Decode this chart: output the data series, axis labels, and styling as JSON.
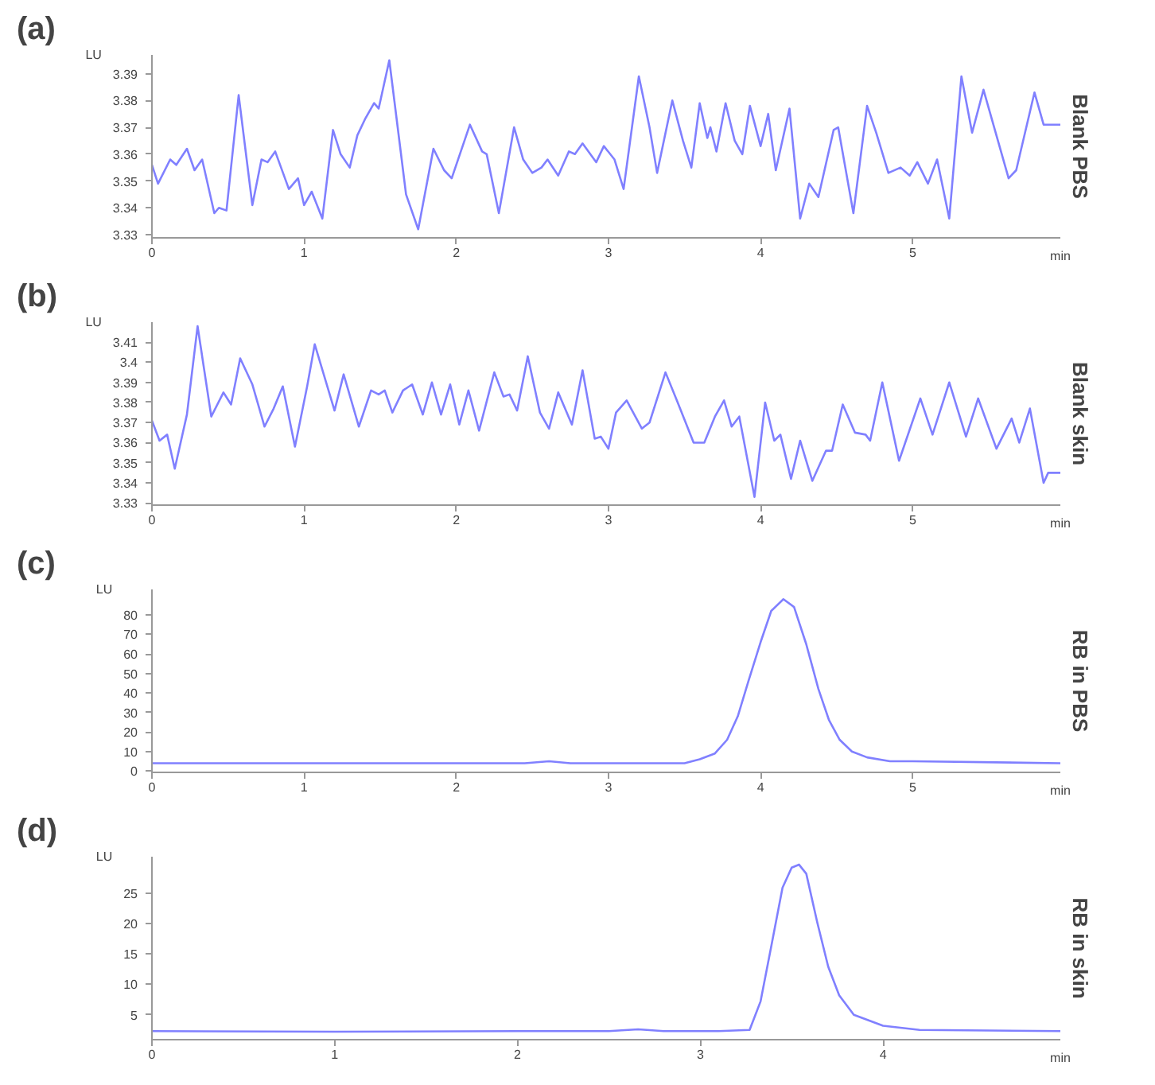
{
  "chart_data": [
    {
      "type": "line",
      "title": "(a)",
      "subtitle": "Blank PBS",
      "xlabel": "min",
      "ylabel": "LU",
      "xlim": [
        0,
        5.97
      ],
      "ylim": [
        3.3288,
        3.397
      ],
      "xticks": [
        0,
        1,
        2,
        3,
        4,
        5
      ],
      "yticks": [
        3.33,
        3.34,
        3.35,
        3.36,
        3.37,
        3.38,
        3.39
      ],
      "grid": false,
      "marker": "none",
      "line_style": "solid",
      "series": [
        {
          "color": "#8080ff",
          "x": [
            0,
            0.04,
            0.12,
            0.16,
            0.23,
            0.28,
            0.33,
            0.41,
            0.44,
            0.49,
            0.57,
            0.66,
            0.72,
            0.76,
            0.81,
            0.9,
            0.96,
            1.0,
            1.05,
            1.12,
            1.19,
            1.24,
            1.3,
            1.35,
            1.4,
            1.46,
            1.49,
            1.56,
            1.67,
            1.75,
            1.85,
            1.92,
            1.97,
            2.09,
            2.17,
            2.2,
            2.28,
            2.38,
            2.44,
            2.5,
            2.56,
            2.6,
            2.67,
            2.74,
            2.78,
            2.83,
            2.92,
            2.97,
            3.04,
            3.1,
            3.2,
            3.27,
            3.32,
            3.42,
            3.49,
            3.545,
            3.6,
            3.65,
            3.67,
            3.71,
            3.77,
            3.83,
            3.88,
            3.93,
            4.0,
            4.05,
            4.1,
            4.19,
            4.26,
            4.32,
            4.38,
            4.48,
            4.51,
            4.61,
            4.7,
            4.76,
            4.84,
            4.92,
            4.98,
            5.03,
            5.1,
            5.16,
            5.24,
            5.32,
            5.39,
            5.465,
            5.63,
            5.68,
            5.8,
            5.86,
            5.97
          ],
          "values": [
            3.356,
            3.349,
            3.358,
            3.356,
            3.362,
            3.354,
            3.358,
            3.338,
            3.34,
            3.339,
            3.382,
            3.341,
            3.358,
            3.357,
            3.361,
            3.347,
            3.351,
            3.341,
            3.346,
            3.336,
            3.369,
            3.36,
            3.355,
            3.367,
            3.373,
            3.379,
            3.377,
            3.395,
            3.345,
            3.332,
            3.362,
            3.354,
            3.351,
            3.371,
            3.361,
            3.36,
            3.338,
            3.37,
            3.358,
            3.353,
            3.355,
            3.358,
            3.352,
            3.361,
            3.36,
            3.364,
            3.357,
            3.363,
            3.358,
            3.347,
            3.389,
            3.37,
            3.353,
            3.38,
            3.365,
            3.355,
            3.379,
            3.366,
            3.37,
            3.361,
            3.379,
            3.365,
            3.36,
            3.378,
            3.363,
            3.375,
            3.354,
            3.377,
            3.336,
            3.349,
            3.344,
            3.369,
            3.37,
            3.338,
            3.378,
            3.368,
            3.353,
            3.355,
            3.352,
            3.357,
            3.349,
            3.358,
            3.336,
            3.389,
            3.368,
            3.384,
            3.351,
            3.354,
            3.383,
            3.371,
            3.371
          ]
        }
      ]
    },
    {
      "type": "line",
      "title": "(b)",
      "subtitle": "Blank skin",
      "xlabel": "min",
      "ylabel": "LU",
      "xlim": [
        0,
        5.97
      ],
      "ylim": [
        3.3289,
        3.42
      ],
      "xticks": [
        0,
        1,
        2,
        3,
        4,
        5
      ],
      "yticks": [
        3.33,
        3.34,
        3.35,
        3.36,
        3.37,
        3.38,
        3.39,
        3.4,
        3.41
      ],
      "grid": false,
      "marker": "none",
      "line_style": "solid",
      "series": [
        {
          "color": "#8080ff",
          "x": [
            0,
            0.05,
            0.1,
            0.15,
            0.23,
            0.3,
            0.39,
            0.47,
            0.52,
            0.58,
            0.66,
            0.74,
            0.8,
            0.86,
            0.94,
            1.02,
            1.07,
            1.2,
            1.26,
            1.36,
            1.44,
            1.49,
            1.53,
            1.58,
            1.65,
            1.71,
            1.78,
            1.84,
            1.9,
            1.96,
            2.02,
            2.08,
            2.15,
            2.25,
            2.31,
            2.35,
            2.4,
            2.47,
            2.55,
            2.61,
            2.67,
            2.76,
            2.83,
            2.91,
            2.95,
            3.0,
            3.05,
            3.12,
            3.22,
            3.27,
            3.375,
            3.45,
            3.56,
            3.63,
            3.7,
            3.76,
            3.81,
            3.86,
            3.96,
            4.03,
            4.09,
            4.13,
            4.2,
            4.26,
            4.34,
            4.43,
            4.47,
            4.54,
            4.62,
            4.69,
            4.72,
            4.8,
            4.91,
            5.05,
            5.13,
            5.24,
            5.35,
            5.43,
            5.55,
            5.65,
            5.7,
            5.77,
            5.86,
            5.89,
            5.97
          ],
          "values": [
            3.371,
            3.361,
            3.364,
            3.347,
            3.374,
            3.418,
            3.373,
            3.385,
            3.379,
            3.402,
            3.389,
            3.368,
            3.377,
            3.388,
            3.358,
            3.388,
            3.409,
            3.376,
            3.394,
            3.368,
            3.386,
            3.384,
            3.386,
            3.375,
            3.386,
            3.389,
            3.374,
            3.39,
            3.374,
            3.389,
            3.369,
            3.386,
            3.366,
            3.395,
            3.383,
            3.384,
            3.376,
            3.403,
            3.375,
            3.367,
            3.385,
            3.369,
            3.396,
            3.362,
            3.363,
            3.357,
            3.375,
            3.381,
            3.367,
            3.37,
            3.395,
            3.381,
            3.36,
            3.36,
            3.373,
            3.381,
            3.368,
            3.373,
            3.333,
            3.38,
            3.361,
            3.364,
            3.342,
            3.361,
            3.341,
            3.356,
            3.356,
            3.379,
            3.365,
            3.364,
            3.361,
            3.39,
            3.351,
            3.382,
            3.364,
            3.39,
            3.363,
            3.382,
            3.357,
            3.372,
            3.36,
            3.377,
            3.34,
            3.345,
            3.345
          ]
        }
      ]
    },
    {
      "type": "line",
      "title": "(c)",
      "subtitle": "RB in PBS",
      "xlabel": "min",
      "ylabel": "LU",
      "xlim": [
        0,
        5.97
      ],
      "ylim": [
        -0.7,
        93
      ],
      "xticks": [
        0,
        1,
        2,
        3,
        4,
        5
      ],
      "yticks": [
        0,
        10,
        20,
        30,
        40,
        50,
        60,
        70,
        80
      ],
      "grid": false,
      "marker": "none",
      "line_style": "solid",
      "series": [
        {
          "color": "#8080ff",
          "x": [
            0,
            1,
            2,
            2.45,
            2.61,
            2.75,
            3.0,
            3.5,
            3.6,
            3.7,
            3.78,
            3.85,
            3.92,
            4.0,
            4.07,
            4.15,
            4.22,
            4.3,
            4.38,
            4.45,
            4.52,
            4.6,
            4.7,
            4.85,
            5.0,
            5.97
          ],
          "values": [
            4,
            4,
            4,
            4,
            5,
            4,
            4,
            4,
            6,
            9,
            16,
            28,
            46,
            66,
            82,
            88,
            84,
            65,
            42,
            26,
            16,
            10,
            7,
            5,
            5,
            4
          ]
        }
      ]
    },
    {
      "type": "line",
      "title": "(d)",
      "subtitle": "RB in skin",
      "xlabel": "min",
      "ylabel": "LU",
      "xlim": [
        0,
        4.97
      ],
      "ylim": [
        0.9,
        31
      ],
      "xticks": [
        0,
        1,
        2,
        3,
        4
      ],
      "yticks": [
        5,
        10,
        15,
        20,
        25
      ],
      "grid": false,
      "marker": "none",
      "line_style": "solid",
      "series": [
        {
          "color": "#8080ff",
          "x": [
            0,
            1,
            2,
            2.5,
            2.66,
            2.8,
            3.1,
            3.27,
            3.33,
            3.39,
            3.45,
            3.5,
            3.54,
            3.58,
            3.64,
            3.7,
            3.76,
            3.84,
            4.0,
            4.2,
            4.97
          ],
          "values": [
            2.3,
            2.2,
            2.3,
            2.3,
            2.6,
            2.3,
            2.3,
            2.5,
            7.2,
            16.5,
            25.9,
            29.2,
            29.7,
            28.2,
            20.2,
            12.9,
            8.2,
            5,
            3.2,
            2.5,
            2.3
          ]
        }
      ]
    }
  ]
}
